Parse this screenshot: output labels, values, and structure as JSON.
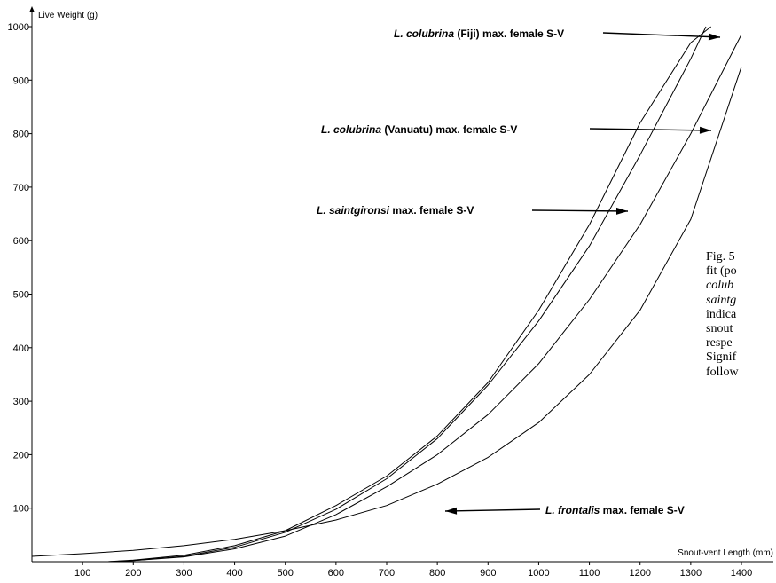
{
  "chart_data": {
    "type": "line",
    "xlabel": "Snout-vent Length (mm)",
    "ylabel": "Live Weight (g)",
    "xlim": [
      0,
      1400
    ],
    "ylim": [
      0,
      1000
    ],
    "x_ticks": [
      100,
      200,
      300,
      400,
      500,
      600,
      700,
      800,
      900,
      1000,
      1100,
      1200,
      1300,
      1400
    ],
    "y_ticks": [
      100,
      200,
      300,
      400,
      500,
      600,
      700,
      800,
      900,
      1000
    ],
    "grid": false,
    "legend": "none",
    "series": [
      {
        "name": "L. colubrina (Fiji)",
        "x": [
          150,
          200,
          300,
          400,
          500,
          600,
          700,
          800,
          900,
          1000,
          1100,
          1200,
          1300,
          1340
        ],
        "y": [
          0,
          3,
          12,
          30,
          58,
          105,
          160,
          235,
          335,
          470,
          630,
          820,
          970,
          1000
        ]
      },
      {
        "name": "L. colubrina (Vanuatu)",
        "x": [
          150,
          200,
          300,
          400,
          500,
          600,
          700,
          800,
          900,
          1000,
          1100,
          1200,
          1300,
          1330
        ],
        "y": [
          0,
          2,
          10,
          27,
          55,
          98,
          155,
          230,
          330,
          450,
          590,
          760,
          940,
          1000
        ]
      },
      {
        "name": "L. saintgironsi",
        "x": [
          150,
          200,
          300,
          400,
          500,
          600,
          700,
          800,
          900,
          1000,
          1100,
          1200,
          1300,
          1400
        ],
        "y": [
          0,
          2,
          9,
          24,
          48,
          88,
          140,
          200,
          275,
          370,
          490,
          630,
          800,
          985
        ]
      },
      {
        "name": "L. frontalis",
        "x": [
          0,
          100,
          200,
          300,
          400,
          500,
          600,
          700,
          800,
          900,
          1000,
          1100,
          1200,
          1300,
          1400
        ],
        "y": [
          10,
          15,
          21,
          30,
          42,
          58,
          78,
          105,
          145,
          195,
          260,
          350,
          470,
          640,
          925
        ]
      }
    ],
    "annotations": [
      {
        "species": "L. colubrina",
        "qualifier": " (Fiji)",
        "text": " max. female S-V"
      },
      {
        "species": "L. colubrina",
        "qualifier": " (Vanuatu)",
        "text": " max. female S-V"
      },
      {
        "species": "L. saintgironsi",
        "qualifier": "",
        "text": " max. female S-V"
      },
      {
        "species": "L. frontalis",
        "qualifier": "",
        "text": " max. female S-V"
      }
    ]
  },
  "caption": {
    "lines": [
      [
        {
          "t": "Fig. 5",
          "i": false
        }
      ],
      [
        {
          "t": "fit (po",
          "i": false
        }
      ],
      [
        {
          "t": "colub",
          "i": true
        }
      ],
      [
        {
          "t": "saintg",
          "i": true
        }
      ],
      [
        {
          "t": "indica",
          "i": false
        }
      ],
      [
        {
          "t": "snout",
          "i": false
        }
      ],
      [
        {
          "t": "respe",
          "i": false
        }
      ],
      [
        {
          "t": "Signif",
          "i": false
        }
      ],
      [
        {
          "t": "follow",
          "i": false
        }
      ]
    ]
  }
}
